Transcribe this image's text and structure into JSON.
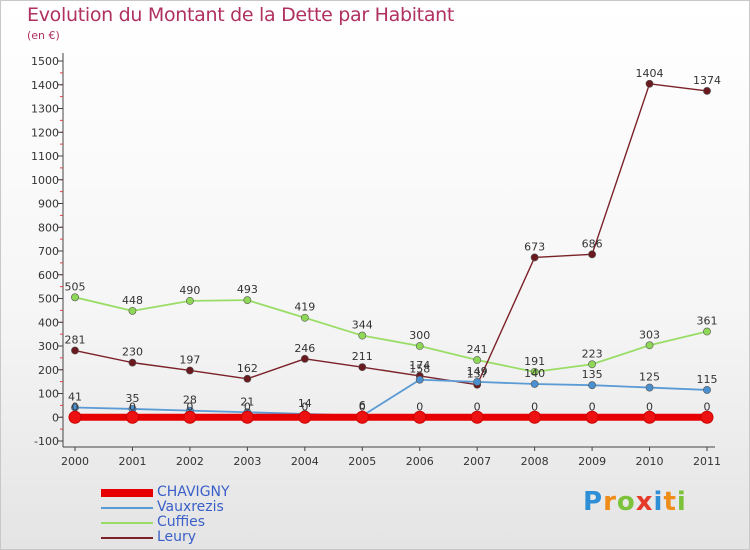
{
  "chart_data": {
    "type": "line",
    "title": "Evolution du Montant de la Dette par Habitant",
    "subtitle": "(en €)",
    "x": [
      "2000",
      "2001",
      "2002",
      "2003",
      "2004",
      "2005",
      "2006",
      "2007",
      "2008",
      "2009",
      "2010",
      "2011"
    ],
    "ylim": [
      -100,
      1500
    ],
    "yticks": [
      -100,
      0,
      100,
      200,
      300,
      400,
      500,
      600,
      700,
      800,
      900,
      1000,
      1100,
      1200,
      1300,
      1400,
      1500
    ],
    "grid": false,
    "legend_position": "bottom-left",
    "series": [
      {
        "name": "CHAVIGNY",
        "color": "#e60000",
        "values": [
          0,
          0,
          0,
          0,
          0,
          0,
          0,
          0,
          0,
          0,
          0,
          0
        ]
      },
      {
        "name": "Vauxrezis",
        "color": "#5b9bd5",
        "values": [
          41,
          35,
          28,
          21,
          14,
          6,
          158,
          149,
          140,
          135,
          125,
          115
        ]
      },
      {
        "name": "Cuffies",
        "color": "#99dd66",
        "values": [
          505,
          448,
          490,
          493,
          419,
          344,
          300,
          241,
          191,
          223,
          303,
          361
        ]
      },
      {
        "name": "Leury",
        "color": "#7a2228",
        "values": [
          281,
          230,
          197,
          162,
          246,
          211,
          174,
          137,
          673,
          686,
          1404,
          1374
        ]
      }
    ]
  },
  "logo": {
    "text": "Proxiti",
    "letters": [
      "P",
      "r",
      "o",
      "x",
      "i",
      "t",
      "i"
    ],
    "colors": [
      "#2e8fd6",
      "#f08c1a",
      "#7cc23a",
      "#e53a2a",
      "#2e8fd6",
      "#f08c1a",
      "#7cc23a"
    ]
  }
}
